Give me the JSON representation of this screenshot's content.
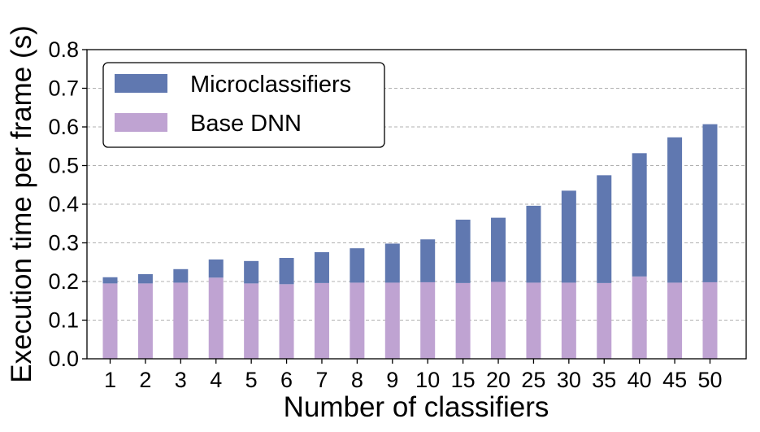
{
  "chart_data": {
    "type": "bar",
    "stacked": true,
    "title": "",
    "xlabel": "Number of classifiers",
    "ylabel": "Execution time per frame (s)",
    "ylim": [
      0,
      0.8
    ],
    "yticks": [
      "0.0",
      "0.1",
      "0.2",
      "0.3",
      "0.4",
      "0.5",
      "0.6",
      "0.7",
      "0.8"
    ],
    "grid": "horizontal dashed",
    "legend_position": "top-left",
    "categories": [
      "1",
      "2",
      "3",
      "4",
      "5",
      "6",
      "7",
      "8",
      "9",
      "10",
      "15",
      "20",
      "25",
      "30",
      "35",
      "40",
      "45",
      "50"
    ],
    "series": [
      {
        "name": "Base DNN",
        "color": "#bfa3d2",
        "values": [
          0.195,
          0.195,
          0.197,
          0.21,
          0.195,
          0.193,
          0.196,
          0.197,
          0.197,
          0.198,
          0.196,
          0.199,
          0.197,
          0.197,
          0.196,
          0.213,
          0.197,
          0.198
        ]
      },
      {
        "name": "Microclassifiers",
        "color": "#6078b0",
        "values": [
          0.016,
          0.024,
          0.035,
          0.047,
          0.058,
          0.068,
          0.08,
          0.089,
          0.101,
          0.111,
          0.164,
          0.166,
          0.199,
          0.238,
          0.279,
          0.319,
          0.376,
          0.409
        ]
      }
    ],
    "legend": [
      "Microclassifiers",
      "Base DNN"
    ]
  }
}
